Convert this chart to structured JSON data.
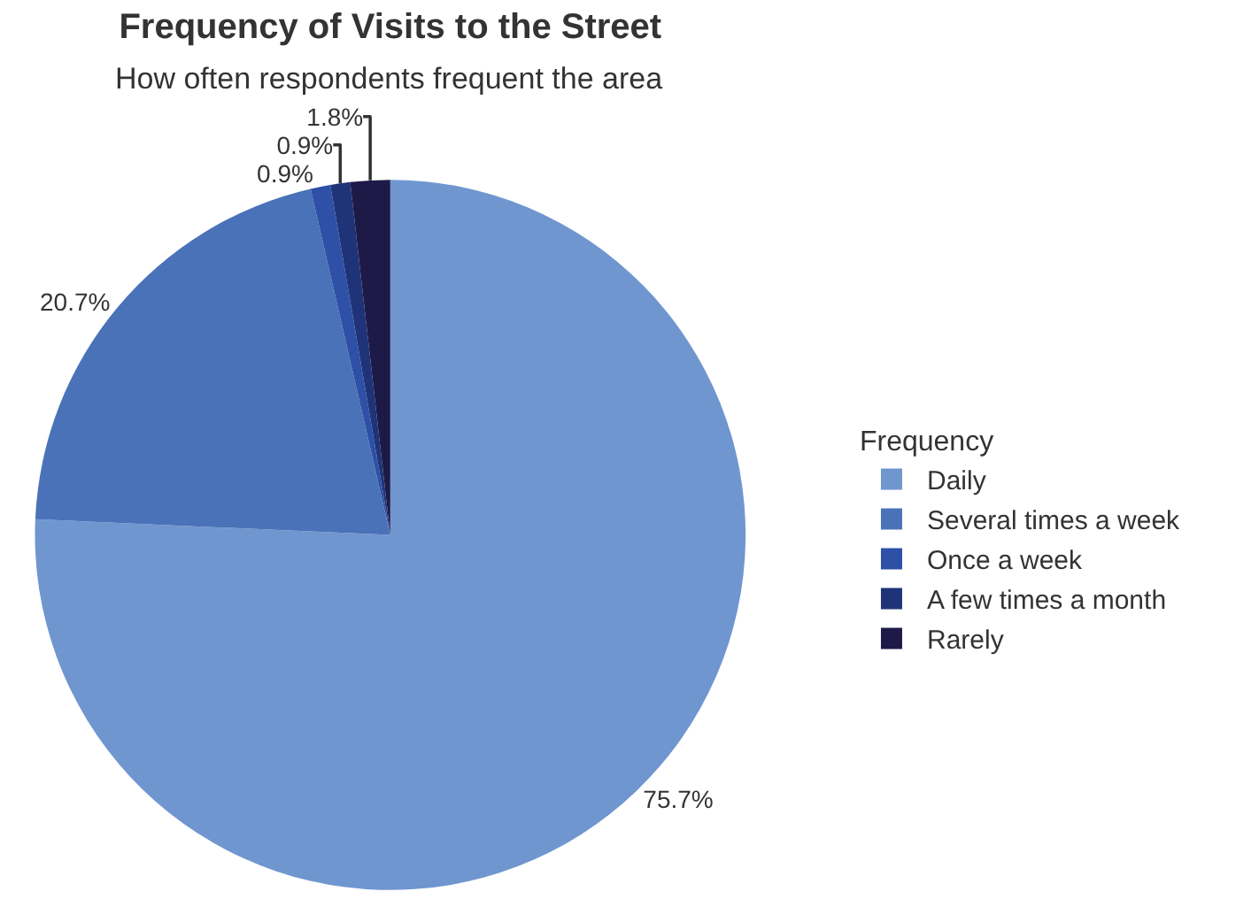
{
  "chart_data": {
    "type": "pie",
    "title": "Frequency of Visits to the Street",
    "subtitle": "How often respondents frequent the area",
    "legend_title": "Frequency",
    "categories": [
      "Daily",
      "Several times a week",
      "Once a week",
      "A few times a month",
      "Rarely"
    ],
    "values": [
      75.7,
      20.7,
      0.9,
      0.9,
      1.8
    ],
    "colors": [
      "#7096d0",
      "#4a72b8",
      "#2e50a6",
      "#1f3478",
      "#1e1a48"
    ],
    "value_labels": [
      "75.7%",
      "20.7%",
      "0.9%",
      "0.9%",
      "1.8%"
    ],
    "legend": "right"
  }
}
